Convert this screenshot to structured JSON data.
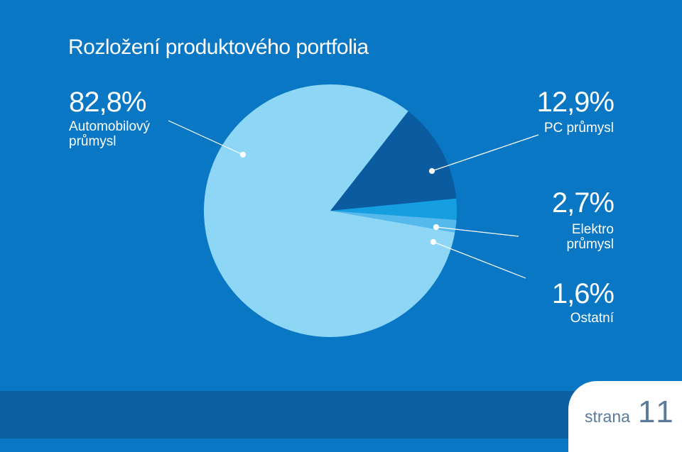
{
  "title": "Rozložení produktového portfolia",
  "chart_data": {
    "type": "pie",
    "slices": [
      {
        "label": "Automobilový průmysl",
        "pct_text": "82,8%",
        "value": 82.8,
        "color": "#8dd6f6"
      },
      {
        "label": "PC průmysl",
        "pct_text": "12,9%",
        "value": 12.9,
        "color": "#0b5ba0"
      },
      {
        "label": "Elektro průmysl",
        "pct_text": "2,7%",
        "value": 2.7,
        "color": "#159fe0"
      },
      {
        "label": "Ostatní",
        "pct_text": "1,6%",
        "value": 1.6,
        "color": "#55b9ec"
      }
    ]
  },
  "labels": {
    "auto": {
      "pct": "82,8%",
      "line1": "Automobilový",
      "line2": "průmysl"
    },
    "pc": {
      "pct": "12,9%",
      "line1": "PC průmysl"
    },
    "elektro": {
      "pct": "2,7%",
      "line1": "Elektro",
      "line2": "průmysl"
    },
    "ostatni": {
      "pct": "1,6%",
      "line1": "Ostatní"
    }
  },
  "footer": {
    "page_word": "strana",
    "page_number": "11"
  },
  "colors": {
    "background": "#0a77c4",
    "band": "#0b5fa3",
    "leader": "#ffffff"
  }
}
